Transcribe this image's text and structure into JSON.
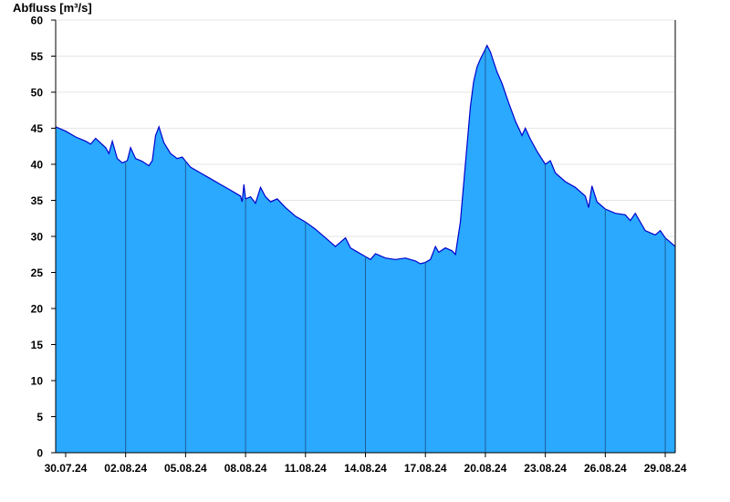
{
  "chart_data": {
    "type": "area",
    "ylabel": "Abfluss [m³/s]",
    "ylim": [
      0,
      60
    ],
    "yticks": [
      0,
      5,
      10,
      15,
      20,
      25,
      30,
      35,
      40,
      45,
      50,
      55,
      60
    ],
    "xlim": [
      "2024-07-29T12:00",
      "2024-08-29T12:00"
    ],
    "xticks": [
      {
        "date": "2024-07-30",
        "label": "30.07.24"
      },
      {
        "date": "2024-08-02",
        "label": "02.08.24"
      },
      {
        "date": "2024-08-05",
        "label": "05.08.24"
      },
      {
        "date": "2024-08-08",
        "label": "08.08.24"
      },
      {
        "date": "2024-08-11",
        "label": "11.08.24"
      },
      {
        "date": "2024-08-14",
        "label": "14.08.24"
      },
      {
        "date": "2024-08-17",
        "label": "17.08.24"
      },
      {
        "date": "2024-08-20",
        "label": "20.08.24"
      },
      {
        "date": "2024-08-23",
        "label": "23.08.24"
      },
      {
        "date": "2024-08-26",
        "label": "26.08.24"
      },
      {
        "date": "2024-08-29",
        "label": "29.08.24"
      }
    ],
    "grid": true,
    "colors": {
      "fill": "#2aa9ff",
      "line": "#0000cc",
      "grid": "#e6e6e6",
      "vline": "#1f5f99"
    },
    "series": [
      {
        "points": [
          [
            "2024-07-29T12:00",
            45.2
          ],
          [
            "2024-07-30T00:00",
            44.6
          ],
          [
            "2024-07-30T12:00",
            43.8
          ],
          [
            "2024-07-31T00:00",
            43.2
          ],
          [
            "2024-07-31T06:00",
            42.8
          ],
          [
            "2024-07-31T12:00",
            43.6
          ],
          [
            "2024-08-01T00:00",
            42.3
          ],
          [
            "2024-08-01T04:00",
            41.5
          ],
          [
            "2024-08-01T08:00",
            43.2
          ],
          [
            "2024-08-01T14:00",
            40.8
          ],
          [
            "2024-08-01T20:00",
            40.2
          ],
          [
            "2024-08-02T02:00",
            40.5
          ],
          [
            "2024-08-02T06:00",
            42.3
          ],
          [
            "2024-08-02T12:00",
            40.8
          ],
          [
            "2024-08-02T20:00",
            40.4
          ],
          [
            "2024-08-03T04:00",
            39.8
          ],
          [
            "2024-08-03T08:00",
            40.5
          ],
          [
            "2024-08-03T12:00",
            44.0
          ],
          [
            "2024-08-03T16:00",
            45.2
          ],
          [
            "2024-08-03T22:00",
            43.0
          ],
          [
            "2024-08-04T06:00",
            41.5
          ],
          [
            "2024-08-04T14:00",
            40.8
          ],
          [
            "2024-08-04T20:00",
            41.0
          ],
          [
            "2024-08-05T06:00",
            39.6
          ],
          [
            "2024-08-05T18:00",
            38.8
          ],
          [
            "2024-08-06T06:00",
            38.0
          ],
          [
            "2024-08-06T18:00",
            37.2
          ],
          [
            "2024-08-07T06:00",
            36.4
          ],
          [
            "2024-08-07T18:00",
            35.6
          ],
          [
            "2024-08-08T00:00",
            35.2
          ],
          [
            "2024-08-07T20:00",
            34.8
          ],
          [
            "2024-08-07T22:00",
            37.2
          ],
          [
            "2024-08-08T06:00",
            35.5
          ],
          [
            "2024-08-08T12:00",
            34.6
          ],
          [
            "2024-08-08T18:00",
            36.8
          ],
          [
            "2024-08-09T00:00",
            35.5
          ],
          [
            "2024-08-09T06:00",
            34.8
          ],
          [
            "2024-08-09T14:00",
            35.2
          ],
          [
            "2024-08-10T00:00",
            34.0
          ],
          [
            "2024-08-10T12:00",
            32.8
          ],
          [
            "2024-08-11T00:00",
            32.0
          ],
          [
            "2024-08-11T12:00",
            31.0
          ],
          [
            "2024-08-12T00:00",
            29.8
          ],
          [
            "2024-08-12T12:00",
            28.6
          ],
          [
            "2024-08-12T18:00",
            29.2
          ],
          [
            "2024-08-13T00:00",
            29.8
          ],
          [
            "2024-08-13T06:00",
            28.4
          ],
          [
            "2024-08-13T12:00",
            28.0
          ],
          [
            "2024-08-14T00:00",
            27.2
          ],
          [
            "2024-08-14T06:00",
            26.8
          ],
          [
            "2024-08-14T12:00",
            27.6
          ],
          [
            "2024-08-15T00:00",
            27.0
          ],
          [
            "2024-08-15T12:00",
            26.8
          ],
          [
            "2024-08-16T00:00",
            27.0
          ],
          [
            "2024-08-16T12:00",
            26.6
          ],
          [
            "2024-08-16T18:00",
            26.2
          ],
          [
            "2024-08-17T00:00",
            26.4
          ],
          [
            "2024-08-17T06:00",
            26.8
          ],
          [
            "2024-08-17T12:00",
            28.6
          ],
          [
            "2024-08-17T16:00",
            27.8
          ],
          [
            "2024-08-18T00:00",
            28.4
          ],
          [
            "2024-08-18T08:00",
            28.0
          ],
          [
            "2024-08-18T12:00",
            27.5
          ],
          [
            "2024-08-18T18:00",
            32.0
          ],
          [
            "2024-08-19T00:00",
            40.0
          ],
          [
            "2024-08-19T06:00",
            48.0
          ],
          [
            "2024-08-19T10:00",
            51.5
          ],
          [
            "2024-08-19T14:00",
            53.5
          ],
          [
            "2024-08-19T18:00",
            54.6
          ],
          [
            "2024-08-19T22:00",
            55.5
          ],
          [
            "2024-08-20T02:00",
            56.5
          ],
          [
            "2024-08-20T06:00",
            55.6
          ],
          [
            "2024-08-20T10:00",
            54.2
          ],
          [
            "2024-08-20T14:00",
            52.8
          ],
          [
            "2024-08-20T20:00",
            51.2
          ],
          [
            "2024-08-21T04:00",
            48.5
          ],
          [
            "2024-08-21T12:00",
            46.0
          ],
          [
            "2024-08-21T20:00",
            44.0
          ],
          [
            "2024-08-22T00:00",
            45.0
          ],
          [
            "2024-08-22T06:00",
            43.5
          ],
          [
            "2024-08-22T14:00",
            41.8
          ],
          [
            "2024-08-23T00:00",
            40.0
          ],
          [
            "2024-08-23T06:00",
            40.5
          ],
          [
            "2024-08-23T12:00",
            38.8
          ],
          [
            "2024-08-24T00:00",
            37.6
          ],
          [
            "2024-08-24T12:00",
            36.8
          ],
          [
            "2024-08-25T00:00",
            35.6
          ],
          [
            "2024-08-25T04:00",
            34.0
          ],
          [
            "2024-08-25T08:00",
            37.0
          ],
          [
            "2024-08-25T14:00",
            34.8
          ],
          [
            "2024-08-26T00:00",
            33.8
          ],
          [
            "2024-08-26T12:00",
            33.2
          ],
          [
            "2024-08-27T00:00",
            33.0
          ],
          [
            "2024-08-27T06:00",
            32.2
          ],
          [
            "2024-08-27T12:00",
            33.2
          ],
          [
            "2024-08-28T00:00",
            30.8
          ],
          [
            "2024-08-28T12:00",
            30.2
          ],
          [
            "2024-08-28T18:00",
            30.8
          ],
          [
            "2024-08-29T00:00",
            29.8
          ],
          [
            "2024-08-29T06:00",
            29.2
          ],
          [
            "2024-08-29T12:00",
            28.6
          ]
        ]
      }
    ]
  }
}
